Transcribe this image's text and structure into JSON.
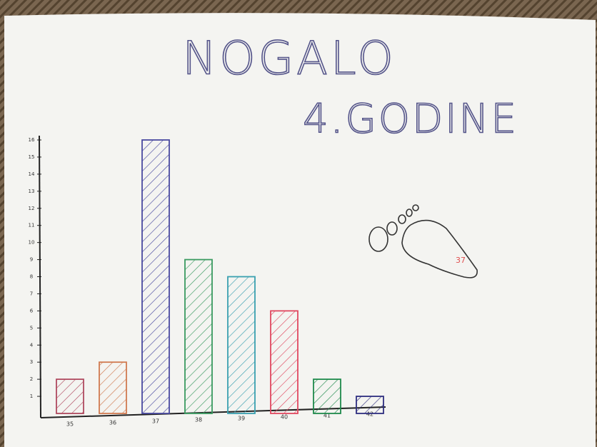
{
  "chart_data": {
    "type": "bar",
    "title": "NOGALO",
    "subtitle": "4.GODINE",
    "categories": [
      "35",
      "36",
      "37",
      "38",
      "39",
      "40",
      "41",
      "42"
    ],
    "values": [
      2,
      3,
      16,
      9,
      8,
      6,
      2,
      1
    ],
    "colors": [
      "#b04a60",
      "#d07a50",
      "#4a4aa0",
      "#3a9a60",
      "#3aa0b0",
      "#e04860",
      "#1f8a4c",
      "#2f2f80"
    ],
    "ylim": [
      0,
      16
    ],
    "yticks": [
      1,
      2,
      3,
      4,
      5,
      6,
      7,
      8,
      9,
      10,
      11,
      12,
      13,
      14,
      15,
      16
    ],
    "grid": false,
    "annotation": "37"
  }
}
